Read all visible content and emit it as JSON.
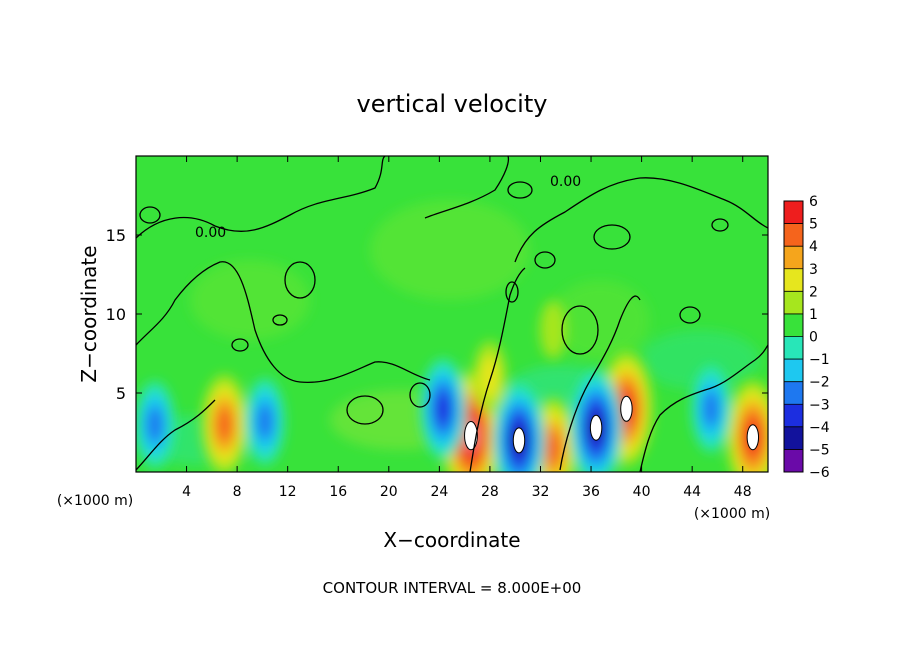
{
  "chart_data": {
    "type": "heatmap",
    "title": "vertical velocity",
    "xlabel": "X−coordinate",
    "ylabel": "Z−coordinate",
    "x_unit_left": "(×1000 m)",
    "x_unit_right": "(×1000 m)",
    "xlim": [
      0,
      50
    ],
    "ylim": [
      0,
      20
    ],
    "x_ticks": [
      4,
      8,
      12,
      16,
      20,
      24,
      28,
      32,
      36,
      40,
      44,
      48
    ],
    "y_ticks": [
      5,
      10,
      15
    ],
    "colorbar": {
      "ticks": [
        "6",
        "5",
        "4",
        "3",
        "2",
        "1",
        "0",
        "−1",
        "−2",
        "−3",
        "−4",
        "−5",
        "−6"
      ],
      "range": [
        -6,
        6
      ]
    },
    "contour_labels": [
      "0.00",
      "0.00"
    ],
    "footnote": "CONTOUR INTERVAL = 8.000E+00",
    "features": [
      {
        "x": 7,
        "z": 3,
        "w": 4.0
      },
      {
        "x": 26.5,
        "z": 2.3,
        "w": 5.5
      },
      {
        "x": 38.8,
        "z": 4.0,
        "w": 5.0
      },
      {
        "x": 48.8,
        "z": 2.2,
        "w": 5.0
      },
      {
        "x": 33,
        "z": 1.5,
        "w": 4.0
      },
      {
        "x": 36.4,
        "z": 2.8,
        "w": -5.0
      },
      {
        "x": 30.3,
        "z": 2.0,
        "w": -5.0
      },
      {
        "x": 24.3,
        "z": 4.0,
        "w": -4.0
      },
      {
        "x": 1.5,
        "z": 3.0,
        "w": -3.0
      },
      {
        "x": 10.2,
        "z": 3.2,
        "w": -3.0
      },
      {
        "x": 45.5,
        "z": 4.0,
        "w": -3.0
      },
      {
        "x": 28,
        "z": 6.0,
        "w": 1.5
      },
      {
        "x": 33,
        "z": 9.0,
        "w": 1.0
      }
    ]
  }
}
